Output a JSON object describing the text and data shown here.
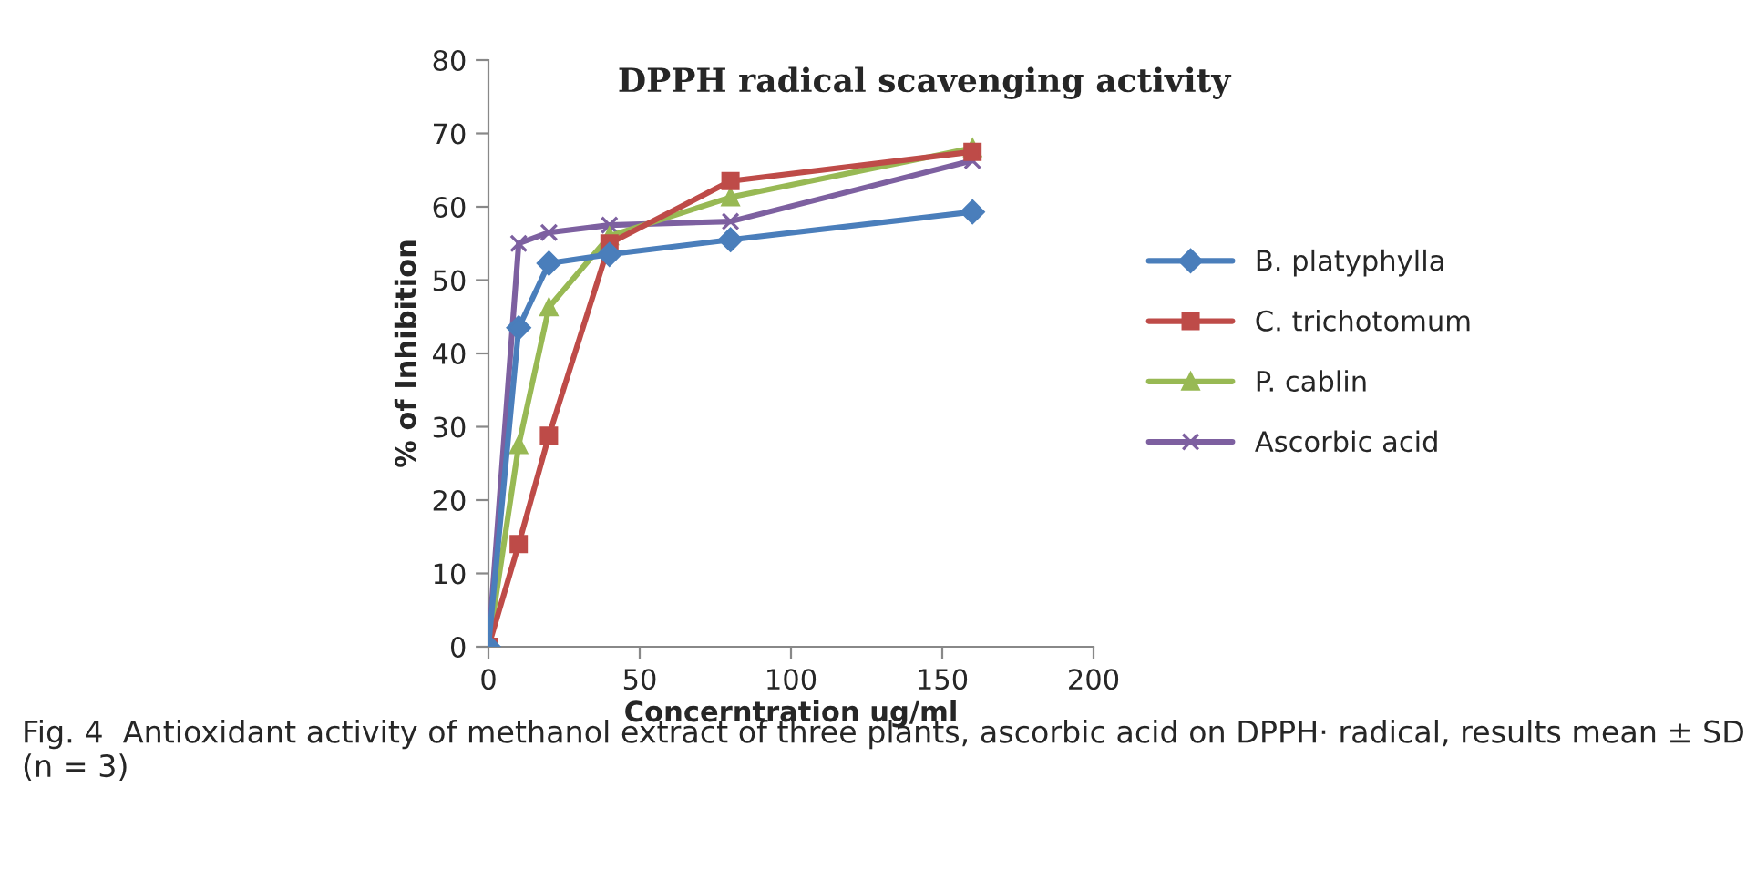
{
  "chart_data": {
    "type": "line",
    "title": "DPPH radical scavenging activity",
    "xlabel": "Concerntration ug/ml",
    "ylabel": "% of Inhibition",
    "x": [
      0,
      10,
      20,
      40,
      80,
      160
    ],
    "series": [
      {
        "name": "B. platyphylla",
        "color": "#4a7ebb",
        "marker": "diamond",
        "values": [
          0,
          43.5,
          52.3,
          53.5,
          55.5,
          59.3
        ]
      },
      {
        "name": "C. trichotomum",
        "color": "#be4b48",
        "marker": "square",
        "values": [
          0,
          14,
          28.8,
          55,
          63.5,
          67.5
        ]
      },
      {
        "name": "P. cablin",
        "color": "#98b954",
        "marker": "triangle",
        "values": [
          0,
          27.5,
          46.3,
          56,
          61.3,
          68
        ]
      },
      {
        "name": "Ascorbic acid",
        "color": "#7d60a0",
        "marker": "cross",
        "values": [
          0,
          55,
          56.5,
          57.5,
          58,
          66.3
        ]
      }
    ],
    "xlim": [
      0,
      200
    ],
    "xticks": [
      0,
      50,
      100,
      150,
      200
    ],
    "ylim": [
      0,
      80
    ],
    "yticks": [
      0,
      10,
      20,
      30,
      40,
      50,
      60,
      70,
      80
    ],
    "grid": false,
    "legend": "right",
    "annotations": [
      "Fig. 4  Antioxidant activity of methanol extract of three plants, ascorbic acid on DPPH· radical, results mean ± SD (n = 3)"
    ]
  }
}
